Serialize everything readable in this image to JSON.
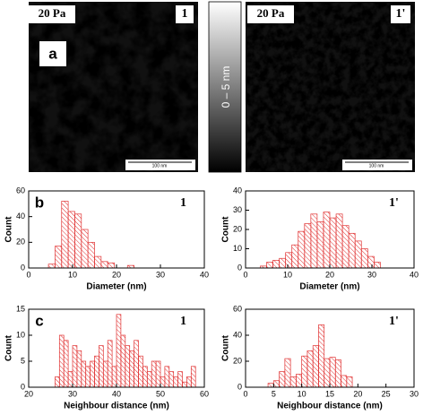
{
  "images": [
    {
      "pressure": "20 Pa",
      "sample": "1",
      "letter": "a",
      "scale": "100 nm"
    },
    {
      "pressure": "20 Pa",
      "sample": "1'",
      "scale": "100 nm"
    }
  ],
  "colorbar": {
    "label": "0 – 5 nm"
  },
  "chart_data": [
    {
      "type": "histogram",
      "letter": "b",
      "sample": "1",
      "xlabel": "Diameter (nm)",
      "ylabel": "Count",
      "color": "#e03030",
      "bins": [
        4.5,
        6,
        7.5,
        9,
        10.5,
        12,
        13.5,
        15,
        16.5,
        18,
        19.5,
        21,
        22.5,
        24
      ],
      "values": [
        3,
        17,
        52,
        44,
        42,
        30,
        20,
        9,
        5,
        4,
        0,
        0,
        2
      ],
      "xlim": [
        0,
        40
      ],
      "xticks": [
        0,
        10,
        20,
        30,
        40
      ],
      "ylim": [
        0,
        60
      ],
      "yticks": [
        0,
        20,
        40,
        60
      ]
    },
    {
      "type": "histogram",
      "sample": "1'",
      "xlabel": "Diameter (nm)",
      "ylabel": "Count",
      "color": "#e03030",
      "bins": [
        3.5,
        5,
        6.5,
        8,
        9.5,
        11,
        12.5,
        14,
        15.5,
        17,
        18.5,
        20,
        21.5,
        23,
        24.5,
        26,
        27.5,
        29,
        30.5,
        32
      ],
      "values": [
        1,
        3,
        4,
        5,
        8,
        12,
        19,
        23,
        28,
        24,
        29,
        26,
        28,
        22,
        18,
        14,
        10,
        6,
        3
      ],
      "xlim": [
        0,
        40
      ],
      "xticks": [
        0,
        10,
        20,
        30,
        40
      ],
      "ylim": [
        0,
        40
      ],
      "yticks": [
        0,
        10,
        20,
        30,
        40
      ]
    },
    {
      "type": "histogram",
      "letter": "c",
      "sample": "1",
      "xlabel": "Neighbour distance (nm)",
      "ylabel": "Count",
      "color": "#e03030",
      "bins": [
        26,
        27,
        28,
        29,
        30,
        31,
        32,
        33,
        34,
        35,
        36,
        37,
        38,
        39,
        40,
        41,
        42,
        43,
        44,
        45,
        46,
        47,
        48,
        49,
        50,
        51,
        52,
        53,
        54,
        55,
        56,
        57,
        58
      ],
      "values": [
        2,
        10,
        9,
        3,
        8,
        7,
        5,
        4,
        5,
        6,
        8,
        5,
        9,
        4,
        14,
        10,
        8,
        7,
        9,
        6,
        4,
        3,
        5,
        5,
        2,
        4,
        3,
        2,
        3,
        1,
        2,
        4
      ],
      "xlim": [
        20,
        60
      ],
      "xticks": [
        20,
        30,
        40,
        50,
        60
      ],
      "ylim": [
        0,
        15
      ],
      "yticks": [
        0,
        5,
        10,
        15
      ]
    },
    {
      "type": "histogram",
      "sample": "1'",
      "xlabel": "Neighbour distance (nm)",
      "ylabel": "Count",
      "color": "#e03030",
      "bins": [
        4,
        5,
        6,
        7,
        8,
        9,
        10,
        11,
        12,
        13,
        14,
        15,
        16,
        17,
        18,
        19
      ],
      "values": [
        3,
        5,
        12,
        22,
        8,
        10,
        24,
        28,
        32,
        48,
        22,
        23,
        21,
        9,
        8
      ],
      "xlim": [
        0,
        30
      ],
      "xticks": [
        0,
        5,
        10,
        15,
        20,
        25,
        30
      ],
      "ylim": [
        0,
        60
      ],
      "yticks": [
        0,
        20,
        40,
        60
      ]
    }
  ]
}
